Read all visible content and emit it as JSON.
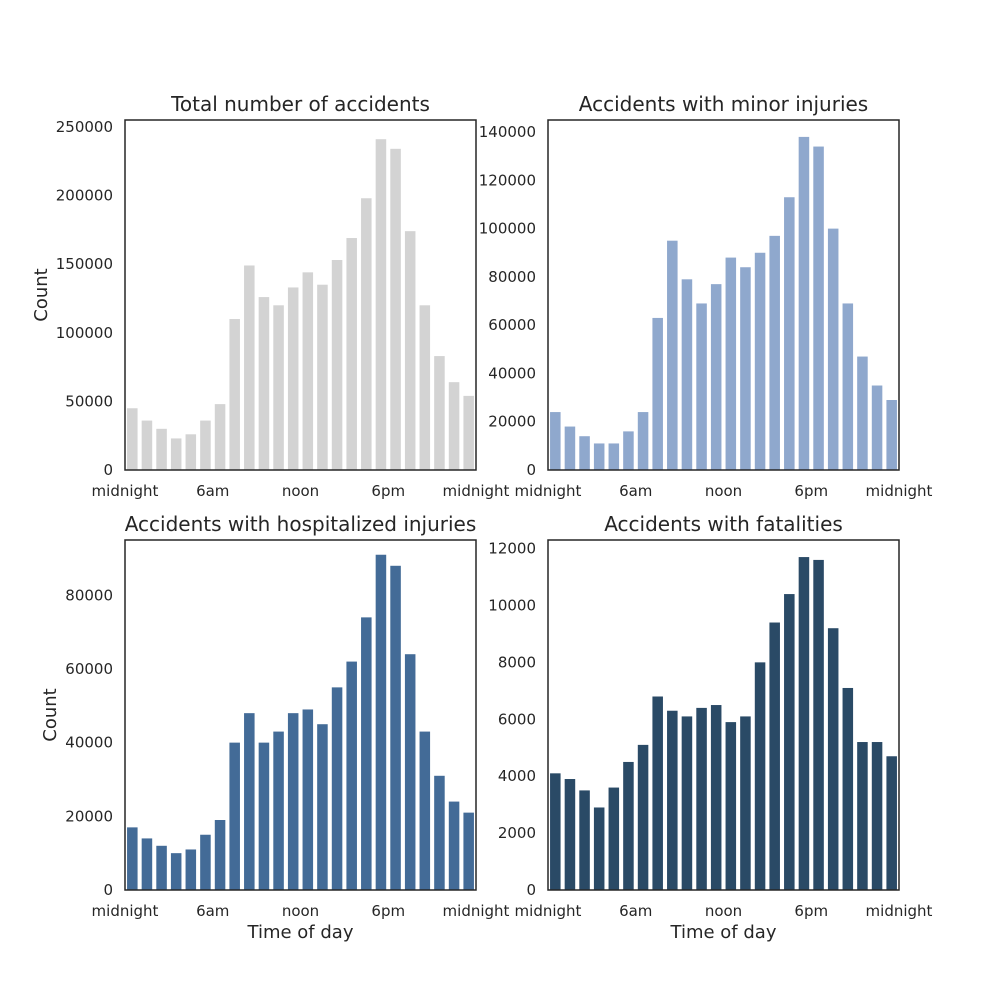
{
  "chart_data": [
    {
      "type": "bar",
      "title": "Total number of accidents",
      "xlabel": "",
      "ylabel": "Count",
      "ylim": [
        0,
        255000
      ],
      "yticks": [
        "0",
        "50000",
        "100000",
        "150000",
        "200000",
        "250000"
      ],
      "xticks": [
        "midnight",
        "6am",
        "noon",
        "6pm",
        "midnight"
      ],
      "color": "#d3d3d3",
      "values": [
        45000,
        36000,
        30000,
        23000,
        26000,
        36000,
        48000,
        110000,
        149000,
        126000,
        120000,
        133000,
        144000,
        135000,
        153000,
        169000,
        198000,
        241000,
        234000,
        174000,
        120000,
        83000,
        64000,
        54000
      ]
    },
    {
      "type": "bar",
      "title": "Accidents with minor injuries",
      "xlabel": "",
      "ylabel": "",
      "ylim": [
        0,
        145000
      ],
      "yticks": [
        "0",
        "20000",
        "40000",
        "60000",
        "80000",
        "100000",
        "120000",
        "140000"
      ],
      "xticks": [
        "midnight",
        "6am",
        "noon",
        "6pm",
        "midnight"
      ],
      "color": "#8fa8cd",
      "values": [
        24000,
        18000,
        14000,
        11000,
        11000,
        16000,
        24000,
        63000,
        95000,
        79000,
        69000,
        77000,
        88000,
        84000,
        90000,
        97000,
        113000,
        138000,
        134000,
        100000,
        69000,
        47000,
        35000,
        29000
      ]
    },
    {
      "type": "bar",
      "title": "Accidents with hospitalized injuries",
      "xlabel": "Time of day",
      "ylabel": "Count",
      "ylim": [
        0,
        95000
      ],
      "yticks": [
        "0",
        "20000",
        "40000",
        "60000",
        "80000"
      ],
      "xticks": [
        "midnight",
        "6am",
        "noon",
        "6pm",
        "midnight"
      ],
      "color": "#436b97",
      "values": [
        17000,
        14000,
        12000,
        10000,
        11000,
        15000,
        19000,
        40000,
        48000,
        40000,
        43000,
        48000,
        49000,
        45000,
        55000,
        62000,
        74000,
        91000,
        88000,
        64000,
        43000,
        31000,
        24000,
        21000
      ]
    },
    {
      "type": "bar",
      "title": "Accidents with fatalities",
      "xlabel": "Time of day",
      "ylabel": "",
      "ylim": [
        0,
        12300
      ],
      "yticks": [
        "0",
        "2000",
        "4000",
        "6000",
        "8000",
        "10000",
        "12000"
      ],
      "xticks": [
        "midnight",
        "6am",
        "noon",
        "6pm",
        "midnight"
      ],
      "color": "#2a4a66",
      "values": [
        4100,
        3900,
        3500,
        2900,
        3600,
        4500,
        5100,
        6800,
        6300,
        6100,
        6400,
        6500,
        5900,
        6100,
        8000,
        9400,
        10400,
        11700,
        11600,
        9200,
        7100,
        5200,
        5200,
        4700
      ]
    }
  ]
}
